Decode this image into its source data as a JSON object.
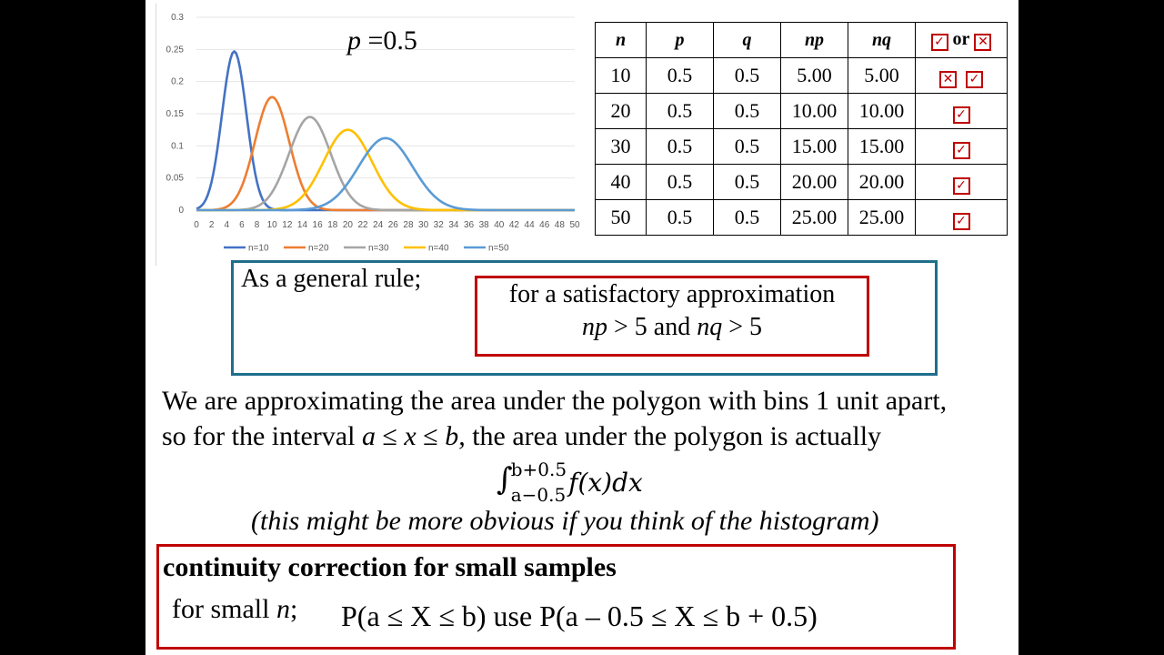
{
  "chart_data": {
    "type": "line",
    "title": "",
    "xlabel": "",
    "ylabel": "",
    "x_ticks": [
      0,
      2,
      4,
      6,
      8,
      10,
      12,
      14,
      16,
      18,
      20,
      22,
      24,
      26,
      28,
      30,
      32,
      34,
      36,
      38,
      40,
      42,
      44,
      46,
      48,
      50
    ],
    "y_ticks": [
      "0",
      "0.05",
      "0.1",
      "0.15",
      "0.2",
      "0.25",
      "0.3"
    ],
    "ylim": [
      0,
      0.3
    ],
    "xlim": [
      0,
      50
    ],
    "grid": "horizontal",
    "legend_position": "bottom",
    "series": [
      {
        "name": "n=10",
        "color": "#4472c4",
        "mean": 5,
        "peak": 0.247
      },
      {
        "name": "n=20",
        "color": "#ed7d31",
        "mean": 10,
        "peak": 0.176
      },
      {
        "name": "n=30",
        "color": "#a5a5a5",
        "mean": 15,
        "peak": 0.145
      },
      {
        "name": "n=40",
        "color": "#ffc000",
        "mean": 20,
        "peak": 0.125
      },
      {
        "name": "n=50",
        "color": "#5b9bd5",
        "mean": 25,
        "peak": 0.112
      }
    ]
  },
  "p_label": {
    "var": "p",
    "value": " =0.5"
  },
  "table": {
    "headers": [
      "n",
      "p",
      "q",
      "np",
      "nq"
    ],
    "header_or": "or",
    "rows": [
      {
        "n": "10",
        "p": "0.5",
        "q": "0.5",
        "np": "5.00",
        "nq": "5.00",
        "marks": [
          "cross",
          "check"
        ]
      },
      {
        "n": "20",
        "p": "0.5",
        "q": "0.5",
        "np": "10.00",
        "nq": "10.00",
        "marks": [
          "check"
        ]
      },
      {
        "n": "30",
        "p": "0.5",
        "q": "0.5",
        "np": "15.00",
        "nq": "15.00",
        "marks": [
          "check"
        ]
      },
      {
        "n": "40",
        "p": "0.5",
        "q": "0.5",
        "np": "20.00",
        "nq": "20.00",
        "marks": [
          "check"
        ]
      },
      {
        "n": "50",
        "p": "0.5",
        "q": "0.5",
        "np": "25.00",
        "nq": "25.00",
        "marks": [
          "check"
        ]
      }
    ]
  },
  "icons": {
    "check": "checkbox-check-icon",
    "cross": "checkbox-cross-icon",
    "check_glyph": "✓",
    "cross_glyph": "✕",
    "mark_color": "#c00000"
  },
  "rule": {
    "heading": "As a general rule;",
    "line1": "for a satisfactory approximation",
    "cond_np": "np",
    "cond_gt1": " > 5 and ",
    "cond_nq": "nq",
    "cond_gt2": " > 5"
  },
  "body": {
    "line1": "We are approximating the area under the polygon with bins 1 unit apart,",
    "line2_pre": "so for the interval ",
    "line2_a": "a",
    "line2_le1": " ≤ ",
    "line2_x": "x",
    "line2_le2": " ≤  ",
    "line2_b": "b,",
    "line2_post": " the area under the polygon is actually",
    "integral_upper": "b+0.5",
    "integral_lower": "a−0.5",
    "integrand": "f(x)dx",
    "note": "(this might be more obvious if you think of the histogram)"
  },
  "correction": {
    "title": "continuity correction for small samples",
    "small_pre": "for small ",
    "small_n": "n",
    "small_post": ";",
    "formula": "P(a  ≤  X  ≤  b)  use  P(a – 0.5  ≤  X  ≤  b + 0.5)"
  }
}
